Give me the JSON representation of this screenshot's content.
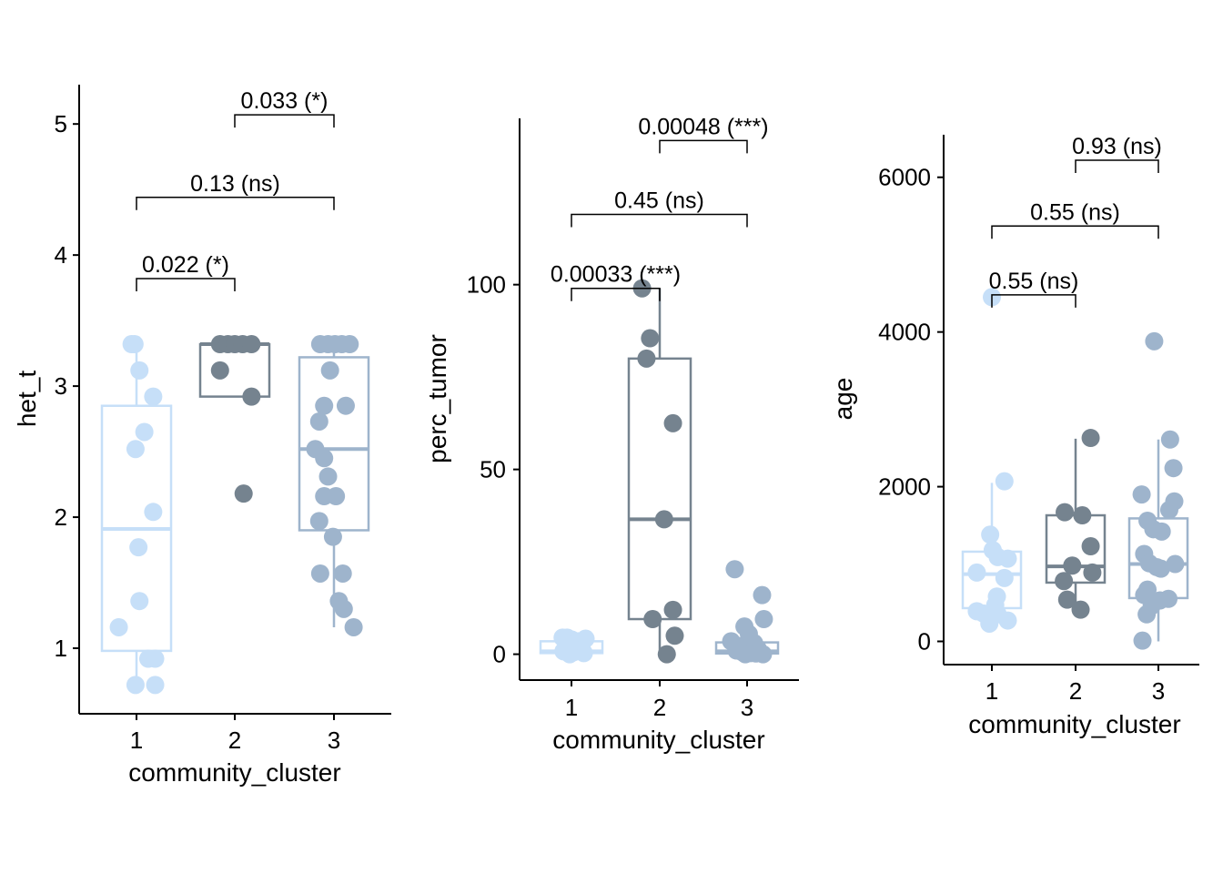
{
  "figure": {
    "colors": {
      "cluster_1": "#C6DFF8",
      "cluster_2": "#75838F",
      "cluster_3": "#9EB4CC",
      "axis": "#000000",
      "bracket": "#000000",
      "background": "#FFFFFF"
    }
  },
  "chart_data": [
    {
      "type": "boxplot",
      "xlabel": "community_cluster",
      "ylabel": "het_t",
      "categories": [
        "1",
        "2",
        "3"
      ],
      "ylim": [
        0.5,
        5.3
      ],
      "yticks": [
        1,
        2,
        3,
        4,
        5
      ],
      "boxes": [
        {
          "q1": 0.98,
          "median": 1.91,
          "q3": 2.85,
          "whisker_low": 0.72,
          "whisker_high": 3.32
        },
        {
          "q1": 2.92,
          "median": 3.32,
          "q3": 3.32,
          "whisker_low": 2.92,
          "whisker_high": 3.32
        },
        {
          "q1": 1.9,
          "median": 2.52,
          "q3": 3.22,
          "whisker_low": 1.16,
          "whisker_high": 3.32
        }
      ],
      "points": [
        {
          "cluster": 1,
          "jitter": -0.05,
          "y": 3.32
        },
        {
          "cluster": 1,
          "jitter": -0.02,
          "y": 3.32
        },
        {
          "cluster": 1,
          "jitter": 0.03,
          "y": 3.12
        },
        {
          "cluster": 1,
          "jitter": 0.17,
          "y": 2.92
        },
        {
          "cluster": 1,
          "jitter": 0.08,
          "y": 2.65
        },
        {
          "cluster": 1,
          "jitter": -0.01,
          "y": 2.52
        },
        {
          "cluster": 1,
          "jitter": 0.17,
          "y": 2.04
        },
        {
          "cluster": 1,
          "jitter": 0.02,
          "y": 1.77
        },
        {
          "cluster": 1,
          "jitter": 0.03,
          "y": 1.36
        },
        {
          "cluster": 1,
          "jitter": -0.18,
          "y": 1.16
        },
        {
          "cluster": 1,
          "jitter": 0.12,
          "y": 0.92
        },
        {
          "cluster": 1,
          "jitter": 0.19,
          "y": 0.92
        },
        {
          "cluster": 1,
          "jitter": -0.01,
          "y": 0.72
        },
        {
          "cluster": 1,
          "jitter": 0.19,
          "y": 0.72
        },
        {
          "cluster": 2,
          "jitter": -0.15,
          "y": 3.32
        },
        {
          "cluster": 2,
          "jitter": -0.07,
          "y": 3.32
        },
        {
          "cluster": 2,
          "jitter": 0.0,
          "y": 3.32
        },
        {
          "cluster": 2,
          "jitter": 0.08,
          "y": 3.32
        },
        {
          "cluster": 2,
          "jitter": 0.17,
          "y": 3.32
        },
        {
          "cluster": 2,
          "jitter": -0.15,
          "y": 3.12
        },
        {
          "cluster": 2,
          "jitter": 0.17,
          "y": 2.92
        },
        {
          "cluster": 2,
          "jitter": 0.09,
          "y": 2.18
        },
        {
          "cluster": 3,
          "jitter": -0.14,
          "y": 3.32
        },
        {
          "cluster": 3,
          "jitter": -0.06,
          "y": 3.32
        },
        {
          "cluster": 3,
          "jitter": 0.01,
          "y": 3.32
        },
        {
          "cluster": 3,
          "jitter": 0.08,
          "y": 3.32
        },
        {
          "cluster": 3,
          "jitter": 0.16,
          "y": 3.32
        },
        {
          "cluster": 3,
          "jitter": -0.04,
          "y": 3.12
        },
        {
          "cluster": 3,
          "jitter": -0.1,
          "y": 2.85
        },
        {
          "cluster": 3,
          "jitter": 0.12,
          "y": 2.85
        },
        {
          "cluster": 3,
          "jitter": -0.15,
          "y": 2.73
        },
        {
          "cluster": 3,
          "jitter": -0.19,
          "y": 2.52
        },
        {
          "cluster": 3,
          "jitter": -0.1,
          "y": 2.45
        },
        {
          "cluster": 3,
          "jitter": -0.06,
          "y": 2.31
        },
        {
          "cluster": 3,
          "jitter": -0.1,
          "y": 2.16
        },
        {
          "cluster": 3,
          "jitter": 0.02,
          "y": 2.16
        },
        {
          "cluster": 3,
          "jitter": -0.15,
          "y": 1.97
        },
        {
          "cluster": 3,
          "jitter": -0.01,
          "y": 1.85
        },
        {
          "cluster": 3,
          "jitter": -0.14,
          "y": 1.57
        },
        {
          "cluster": 3,
          "jitter": 0.09,
          "y": 1.57
        },
        {
          "cluster": 3,
          "jitter": 0.05,
          "y": 1.36
        },
        {
          "cluster": 3,
          "jitter": 0.1,
          "y": 1.3
        },
        {
          "cluster": 3,
          "jitter": 0.2,
          "y": 1.16
        }
      ],
      "comparisons": [
        {
          "from": 1,
          "to": 2,
          "y": 3.82,
          "label": "0.022 (*)"
        },
        {
          "from": 1,
          "to": 3,
          "y": 4.44,
          "label": "0.13 (ns)"
        },
        {
          "from": 2,
          "to": 3,
          "y": 5.07,
          "label": "0.033 (*)"
        }
      ]
    },
    {
      "type": "boxplot",
      "xlabel": "community_cluster",
      "ylabel": "perc_tumor",
      "categories": [
        "1",
        "2",
        "3"
      ],
      "ylim": [
        -7,
        145
      ],
      "yticks": [
        0,
        50,
        100
      ],
      "boxes": [
        {
          "q1": 0.3,
          "median": 0.8,
          "q3": 3.5,
          "whisker_low": 0,
          "whisker_high": 5
        },
        {
          "q1": 9.5,
          "median": 36.5,
          "q3": 80,
          "whisker_low": 0,
          "whisker_high": 99
        },
        {
          "q1": 0.2,
          "median": 0.8,
          "q3": 3.2,
          "whisker_low": 0,
          "whisker_high": 8
        }
      ],
      "points": [
        {
          "cluster": 1,
          "jitter": -0.1,
          "y": 4.5
        },
        {
          "cluster": 1,
          "jitter": -0.05,
          "y": 4.5
        },
        {
          "cluster": 1,
          "jitter": 0.0,
          "y": 4.0
        },
        {
          "cluster": 1,
          "jitter": 0.08,
          "y": 3.5
        },
        {
          "cluster": 1,
          "jitter": 0.16,
          "y": 4.2
        },
        {
          "cluster": 1,
          "jitter": -0.03,
          "y": 2.5
        },
        {
          "cluster": 1,
          "jitter": 0.05,
          "y": 2.0
        },
        {
          "cluster": 1,
          "jitter": 0.12,
          "y": 1.2
        },
        {
          "cluster": 1,
          "jitter": -0.09,
          "y": 0.8
        },
        {
          "cluster": 1,
          "jitter": 0.02,
          "y": 0.5
        },
        {
          "cluster": 1,
          "jitter": 0.14,
          "y": 0.3
        },
        {
          "cluster": 1,
          "jitter": -0.02,
          "y": 0.0
        },
        {
          "cluster": 2,
          "jitter": -0.2,
          "y": 99
        },
        {
          "cluster": 2,
          "jitter": -0.11,
          "y": 85.5
        },
        {
          "cluster": 2,
          "jitter": -0.15,
          "y": 80
        },
        {
          "cluster": 2,
          "jitter": 0.15,
          "y": 62.5
        },
        {
          "cluster": 2,
          "jitter": 0.05,
          "y": 36.5
        },
        {
          "cluster": 2,
          "jitter": 0.15,
          "y": 12
        },
        {
          "cluster": 2,
          "jitter": -0.08,
          "y": 9.5
        },
        {
          "cluster": 2,
          "jitter": 0.17,
          "y": 5
        },
        {
          "cluster": 2,
          "jitter": 0.08,
          "y": 0
        },
        {
          "cluster": 3,
          "jitter": -0.14,
          "y": 23
        },
        {
          "cluster": 3,
          "jitter": 0.17,
          "y": 16
        },
        {
          "cluster": 3,
          "jitter": 0.19,
          "y": 9.5
        },
        {
          "cluster": 3,
          "jitter": -0.03,
          "y": 7.5
        },
        {
          "cluster": 3,
          "jitter": 0.02,
          "y": 5.5
        },
        {
          "cluster": 3,
          "jitter": -0.18,
          "y": 3.5
        },
        {
          "cluster": 3,
          "jitter": 0.08,
          "y": 3
        },
        {
          "cluster": 3,
          "jitter": -0.09,
          "y": 2.2
        },
        {
          "cluster": 3,
          "jitter": 0.12,
          "y": 1.5
        },
        {
          "cluster": 3,
          "jitter": -0.12,
          "y": 1.0
        },
        {
          "cluster": 3,
          "jitter": -0.05,
          "y": 0.5
        },
        {
          "cluster": 3,
          "jitter": 0.04,
          "y": 0.3
        },
        {
          "cluster": 3,
          "jitter": 0.1,
          "y": 0.2
        },
        {
          "cluster": 3,
          "jitter": -0.02,
          "y": 0.0
        },
        {
          "cluster": 3,
          "jitter": 0.18,
          "y": 0.0
        }
      ],
      "comparisons": [
        {
          "from": 1,
          "to": 2,
          "y": 99,
          "label": "0.00033 (***)"
        },
        {
          "from": 1,
          "to": 3,
          "y": 119,
          "label": "0.45 (ns)"
        },
        {
          "from": 2,
          "to": 3,
          "y": 139,
          "label": "0.00048 (***)"
        }
      ]
    },
    {
      "type": "boxplot",
      "xlabel": "community_cluster",
      "ylabel": "age",
      "categories": [
        "1",
        "2",
        "3"
      ],
      "ylim": [
        -300,
        6550
      ],
      "yticks": [
        0,
        2000,
        4000,
        6000
      ],
      "boxes": [
        {
          "q1": 430,
          "median": 870,
          "q3": 1160,
          "whisker_low": 220,
          "whisker_high": 2050
        },
        {
          "q1": 760,
          "median": 970,
          "q3": 1630,
          "whisker_low": 400,
          "whisker_high": 2620
        },
        {
          "q1": 560,
          "median": 1000,
          "q3": 1590,
          "whisker_low": 0,
          "whisker_high": 2610
        }
      ],
      "points": [
        {
          "cluster": 1,
          "jitter": 0.0,
          "y": 4450
        },
        {
          "cluster": 1,
          "jitter": 0.15,
          "y": 2070
        },
        {
          "cluster": 1,
          "jitter": -0.02,
          "y": 1380
        },
        {
          "cluster": 1,
          "jitter": 0.01,
          "y": 1180
        },
        {
          "cluster": 1,
          "jitter": 0.07,
          "y": 1090
        },
        {
          "cluster": 1,
          "jitter": 0.19,
          "y": 1070
        },
        {
          "cluster": 1,
          "jitter": -0.18,
          "y": 890
        },
        {
          "cluster": 1,
          "jitter": 0.15,
          "y": 820
        },
        {
          "cluster": 1,
          "jitter": 0.06,
          "y": 580
        },
        {
          "cluster": 1,
          "jitter": 0.04,
          "y": 470
        },
        {
          "cluster": 1,
          "jitter": -0.18,
          "y": 390
        },
        {
          "cluster": 1,
          "jitter": -0.1,
          "y": 360
        },
        {
          "cluster": 1,
          "jitter": 0.07,
          "y": 350
        },
        {
          "cluster": 1,
          "jitter": 0.19,
          "y": 270
        },
        {
          "cluster": 1,
          "jitter": -0.03,
          "y": 230
        },
        {
          "cluster": 2,
          "jitter": 0.18,
          "y": 2630
        },
        {
          "cluster": 2,
          "jitter": -0.13,
          "y": 1670
        },
        {
          "cluster": 2,
          "jitter": 0.08,
          "y": 1630
        },
        {
          "cluster": 2,
          "jitter": 0.18,
          "y": 1230
        },
        {
          "cluster": 2,
          "jitter": -0.04,
          "y": 980
        },
        {
          "cluster": 2,
          "jitter": 0.2,
          "y": 890
        },
        {
          "cluster": 2,
          "jitter": -0.14,
          "y": 780
        },
        {
          "cluster": 2,
          "jitter": -0.1,
          "y": 540
        },
        {
          "cluster": 2,
          "jitter": 0.06,
          "y": 410
        },
        {
          "cluster": 3,
          "jitter": -0.05,
          "y": 3880
        },
        {
          "cluster": 3,
          "jitter": 0.14,
          "y": 2610
        },
        {
          "cluster": 3,
          "jitter": 0.18,
          "y": 2240
        },
        {
          "cluster": 3,
          "jitter": -0.2,
          "y": 1900
        },
        {
          "cluster": 3,
          "jitter": 0.19,
          "y": 1810
        },
        {
          "cluster": 3,
          "jitter": 0.13,
          "y": 1700
        },
        {
          "cluster": 3,
          "jitter": -0.13,
          "y": 1560
        },
        {
          "cluster": 3,
          "jitter": -0.06,
          "y": 1450
        },
        {
          "cluster": 3,
          "jitter": 0.04,
          "y": 1420
        },
        {
          "cluster": 3,
          "jitter": -0.17,
          "y": 1130
        },
        {
          "cluster": 3,
          "jitter": -0.11,
          "y": 1010
        },
        {
          "cluster": 3,
          "jitter": -0.02,
          "y": 960
        },
        {
          "cluster": 3,
          "jitter": 0.2,
          "y": 1000
        },
        {
          "cluster": 3,
          "jitter": 0.03,
          "y": 940
        },
        {
          "cluster": 3,
          "jitter": -0.13,
          "y": 670
        },
        {
          "cluster": 3,
          "jitter": -0.17,
          "y": 600
        },
        {
          "cluster": 3,
          "jitter": 0.12,
          "y": 550
        },
        {
          "cluster": 3,
          "jitter": 0.02,
          "y": 530
        },
        {
          "cluster": 3,
          "jitter": -0.08,
          "y": 460
        },
        {
          "cluster": 3,
          "jitter": -0.14,
          "y": 350
        },
        {
          "cluster": 3,
          "jitter": -0.19,
          "y": 10
        }
      ],
      "comparisons": [
        {
          "from": 1,
          "to": 2,
          "y": 4480,
          "label": "0.55 (ns)"
        },
        {
          "from": 1,
          "to": 3,
          "y": 5370,
          "label": "0.55 (ns)"
        },
        {
          "from": 2,
          "to": 3,
          "y": 6220,
          "label": "0.93 (ns)"
        }
      ]
    }
  ]
}
